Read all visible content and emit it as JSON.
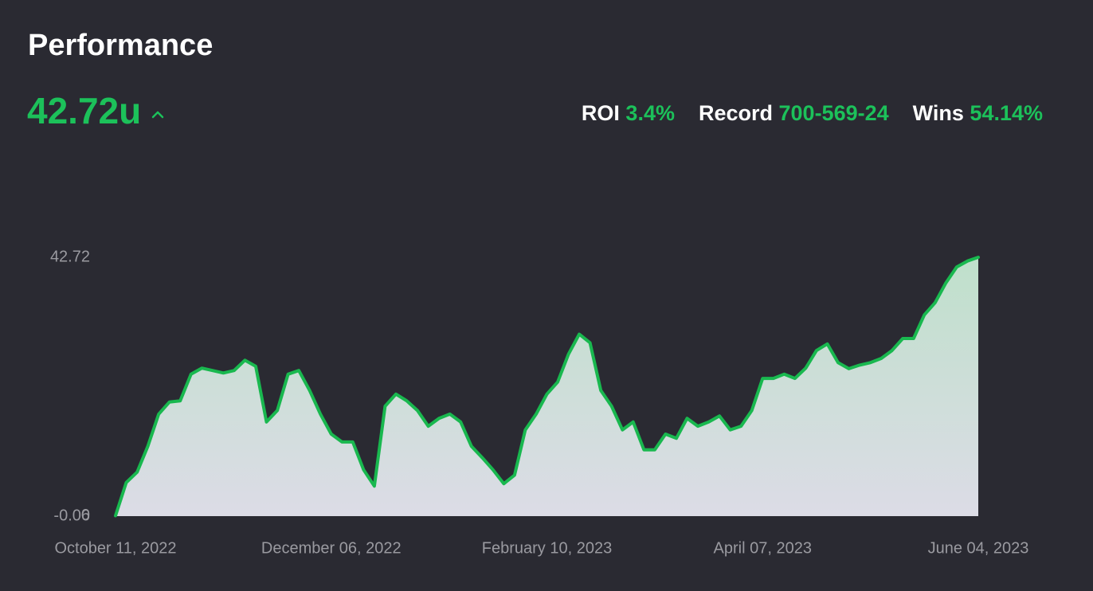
{
  "header": {
    "title": "Performance",
    "total": "42.72u",
    "stats": [
      {
        "label": "ROI",
        "value": "3.4%"
      },
      {
        "label": "Record",
        "value": "700-569-24"
      },
      {
        "label": "Wins",
        "value": "54.14%"
      }
    ]
  },
  "chart_data": {
    "type": "area",
    "color": "#19b84f",
    "categories": [
      "October 11, 2022",
      null,
      null,
      null,
      null,
      null,
      null,
      null,
      null,
      null,
      null,
      null,
      null,
      null,
      null,
      null,
      null,
      null,
      null,
      null,
      "December 06, 2022",
      null,
      null,
      null,
      null,
      null,
      null,
      null,
      null,
      null,
      null,
      null,
      null,
      null,
      null,
      null,
      null,
      null,
      null,
      null,
      "February 10, 2023",
      null,
      null,
      null,
      null,
      null,
      null,
      null,
      null,
      null,
      null,
      null,
      null,
      null,
      null,
      null,
      null,
      null,
      null,
      null,
      "April 07, 2023",
      null,
      null,
      null,
      null,
      null,
      null,
      null,
      null,
      null,
      null,
      null,
      null,
      null,
      null,
      null,
      null,
      null,
      null,
      null,
      "June 04, 2023"
    ],
    "values": [
      0,
      5.5,
      7.2,
      11.5,
      16.8,
      18.8,
      19.0,
      23.4,
      24.4,
      24.0,
      23.6,
      24.0,
      25.7,
      24.7,
      15.5,
      17.4,
      23.4,
      24.0,
      20.7,
      16.8,
      13.5,
      12.2,
      12.2,
      7.6,
      4.9,
      18.1,
      20.1,
      19.0,
      17.4,
      14.8,
      16.1,
      16.8,
      15.5,
      11.5,
      9.6,
      7.6,
      5.3,
      6.7,
      14.2,
      16.8,
      20.1,
      22.1,
      26.7,
      30.0,
      28.6,
      20.7,
      18.1,
      14.2,
      15.5,
      10.9,
      10.9,
      13.5,
      12.8,
      16.1,
      14.8,
      15.5,
      16.5,
      14.2,
      14.8,
      17.4,
      22.7,
      22.7,
      23.4,
      22.7,
      24.4,
      27.3,
      28.4,
      25.3,
      24.3,
      24.9,
      25.3,
      26.0,
      27.3,
      29.3,
      29.3,
      33.2,
      35.2,
      38.5,
      41.1,
      42.1,
      42.72
    ],
    "ylim": [
      -0.06,
      42.72
    ],
    "yticks": [
      -0.06,
      0,
      42.72
    ]
  }
}
